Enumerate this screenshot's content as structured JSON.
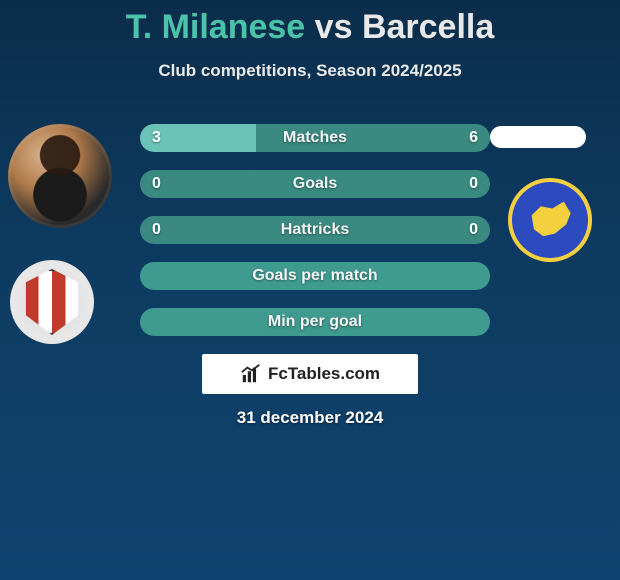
{
  "title": {
    "player1": "T. Milanese",
    "vs": "vs",
    "player2": "Barcella"
  },
  "subtitle": "Club competitions, Season 2024/2025",
  "colors": {
    "player1_accent": "#4ac4a8",
    "bar_bg": "#3a8a82",
    "bar_fill": "#6bc2b6",
    "bg_top": "#0a2d4a",
    "bg_bottom": "#0f4470",
    "brand_bg": "#ffffff",
    "brand_text": "#222222"
  },
  "bars": [
    {
      "label": "Matches",
      "left": "3",
      "right": "6",
      "fill_pct": 33
    },
    {
      "label": "Goals",
      "left": "0",
      "right": "0",
      "fill_pct": 0
    },
    {
      "label": "Hattricks",
      "left": "0",
      "right": "0",
      "fill_pct": 0
    },
    {
      "label": "Goals per match",
      "left": "",
      "right": "",
      "fill_pct": 0,
      "nofill": true
    },
    {
      "label": "Min per goal",
      "left": "",
      "right": "",
      "fill_pct": 0,
      "nofill": true
    }
  ],
  "brand": "FcTables.com",
  "date": "31 december 2024"
}
